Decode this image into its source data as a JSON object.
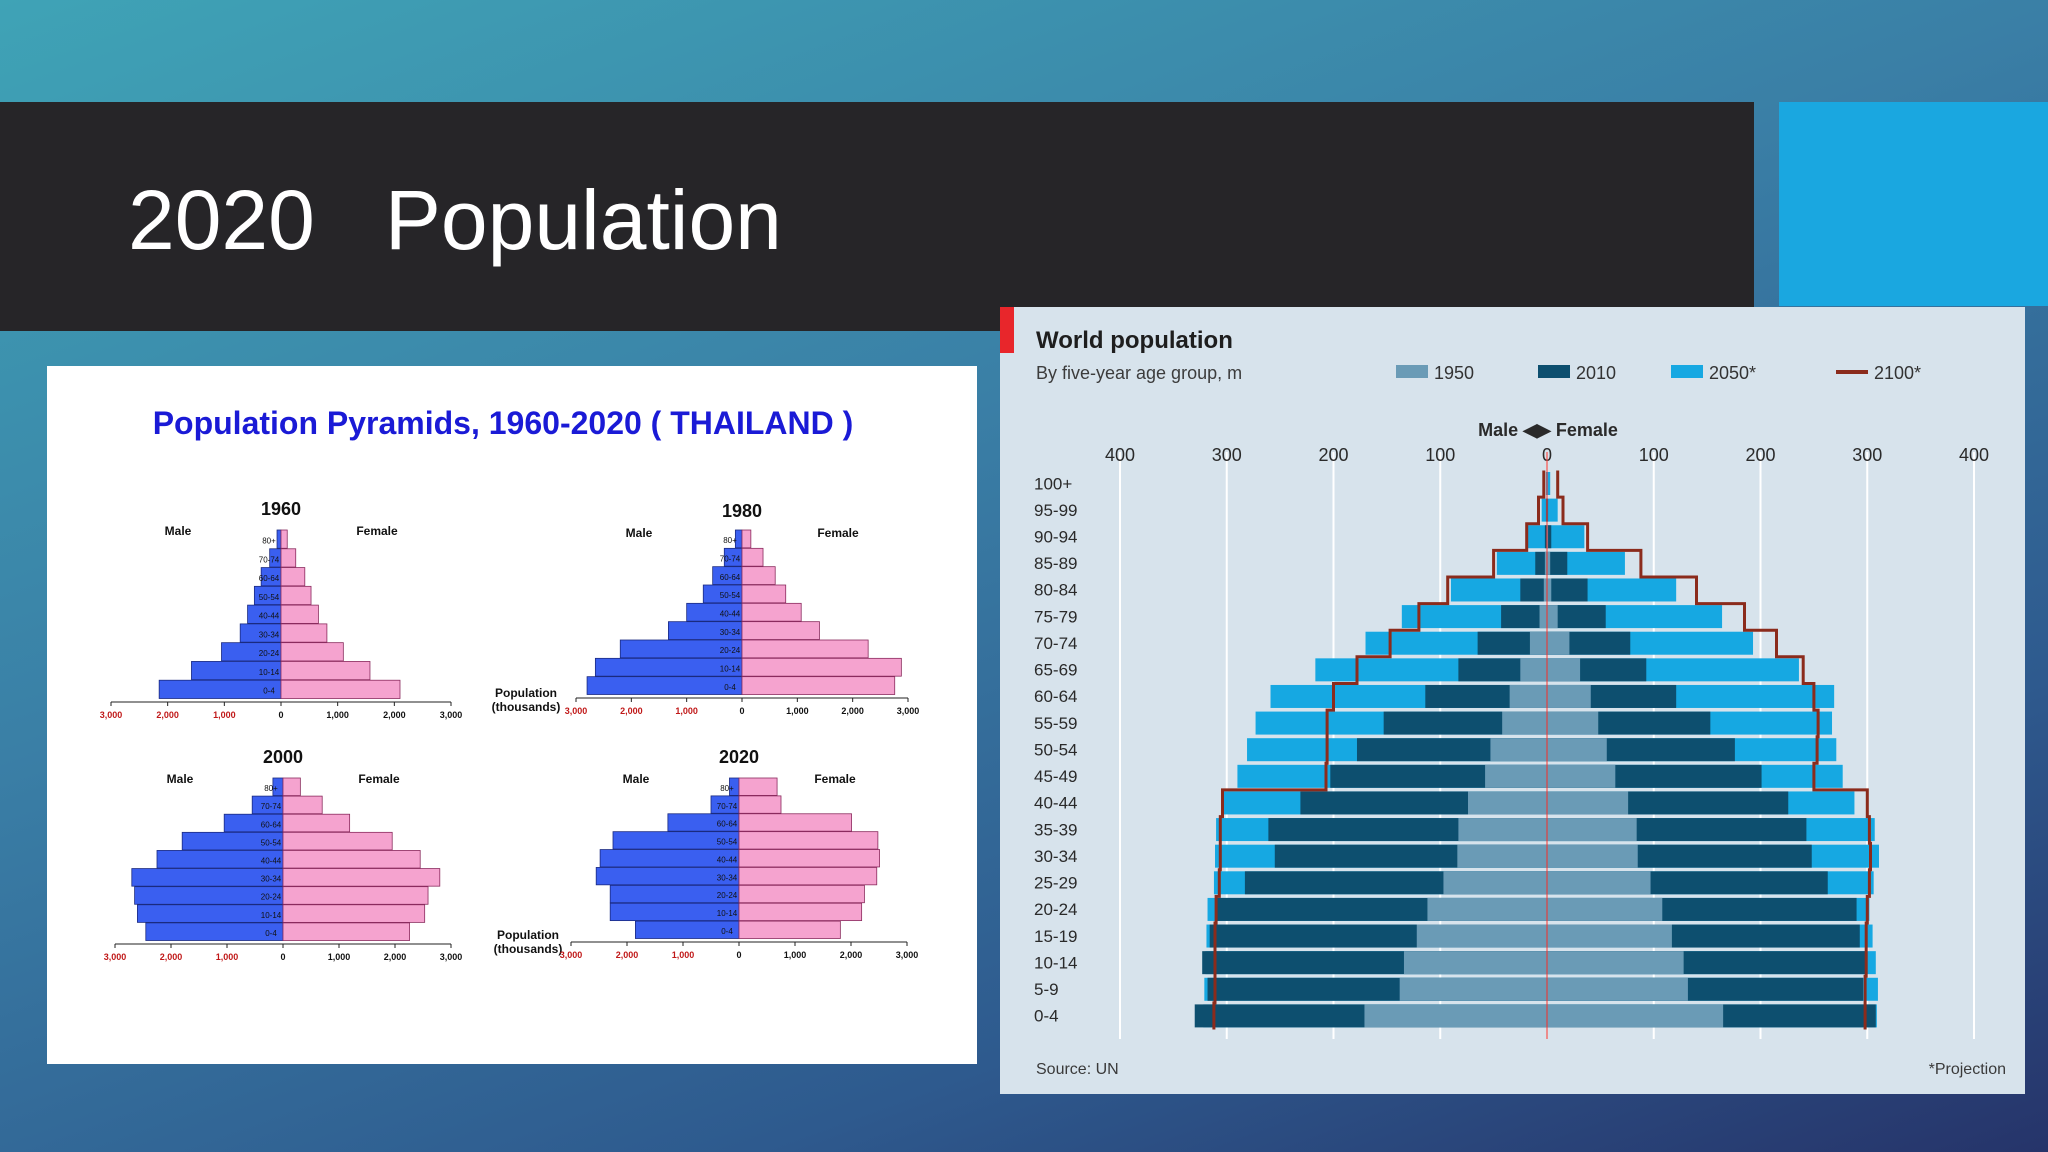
{
  "slide": {
    "title": "2020   Population"
  },
  "colors": {
    "male": "#3a5ff0",
    "female": "#f5a3cf",
    "c1950": "#6a9bb6",
    "c2010": "#0d4f6f",
    "c2050": "#16a8e2",
    "c2100": "#8b2b1c"
  },
  "chart_data": [
    {
      "type": "bar",
      "title": "Population Pyramids, 1960-2020 ( THAILAND )",
      "xlabel": "Population (thousands)",
      "side_labels": [
        "Male",
        "Female"
      ],
      "xlim": [
        -3000,
        3000
      ],
      "x_ticks": [
        "3,000",
        "2,000",
        "1,000",
        "0",
        "1,000",
        "2,000",
        "3,000"
      ],
      "categories": [
        "0-4",
        "10-14",
        "20-24",
        "30-34",
        "40-44",
        "50-54",
        "60-64",
        "70-74",
        "80+"
      ],
      "panels": [
        {
          "year": "1960",
          "male": [
            2150,
            1580,
            1050,
            720,
            590,
            470,
            350,
            200,
            70
          ],
          "female": [
            2100,
            1570,
            1100,
            810,
            660,
            530,
            420,
            260,
            110
          ]
        },
        {
          "year": "1980",
          "male": [
            2800,
            2650,
            2200,
            1330,
            1000,
            700,
            530,
            320,
            120
          ],
          "female": [
            2760,
            2880,
            2280,
            1400,
            1070,
            790,
            600,
            380,
            160
          ]
        },
        {
          "year": "2000",
          "male": [
            2450,
            2600,
            2650,
            2700,
            2250,
            1800,
            1050,
            550,
            180
          ],
          "female": [
            2260,
            2530,
            2590,
            2800,
            2450,
            1950,
            1190,
            700,
            310
          ]
        },
        {
          "year": "2020",
          "male": [
            1850,
            2300,
            2300,
            2550,
            2480,
            2250,
            1270,
            500,
            170
          ],
          "female": [
            1810,
            2190,
            2240,
            2460,
            2510,
            2480,
            2010,
            750,
            680
          ]
        }
      ]
    },
    {
      "type": "bar",
      "title": "World population",
      "subtitle": "By five-year age group, m",
      "center_label": "Male ◀▶ Female",
      "x_ticks": [
        "400",
        "300",
        "200",
        "100",
        "0",
        "100",
        "200",
        "300",
        "400"
      ],
      "xlim": [
        -400,
        400
      ],
      "categories": [
        "100+",
        "95-99",
        "90-94",
        "85-89",
        "80-84",
        "75-79",
        "70-74",
        "65-69",
        "60-64",
        "55-59",
        "50-54",
        "45-49",
        "40-44",
        "35-39",
        "30-34",
        "25-29",
        "20-24",
        "15-19",
        "10-14",
        "5-9",
        "0-4"
      ],
      "series": [
        {
          "name": "1950",
          "male": [
            0,
            0,
            0,
            2,
            3,
            7,
            16,
            25,
            35,
            42,
            53,
            58,
            74,
            83,
            84,
            97,
            112,
            122,
            134,
            138,
            171
          ],
          "female": [
            0,
            0,
            1,
            3,
            4,
            10,
            21,
            31,
            41,
            48,
            56,
            64,
            76,
            84,
            85,
            97,
            108,
            117,
            128,
            132,
            165
          ]
        },
        {
          "name": "2010",
          "male": [
            0,
            1,
            2,
            11,
            25,
            43,
            65,
            83,
            114,
            153,
            178,
            203,
            231,
            261,
            255,
            283,
            310,
            316,
            323,
            318,
            330
          ],
          "female": [
            0,
            1,
            4,
            19,
            38,
            55,
            78,
            93,
            121,
            153,
            176,
            201,
            226,
            243,
            248,
            263,
            290,
            293,
            299,
            296,
            308
          ]
        },
        {
          "name": "2050*",
          "male": [
            1,
            5,
            18,
            47,
            90,
            136,
            170,
            217,
            259,
            273,
            281,
            290,
            303,
            310,
            311,
            312,
            318,
            319,
            320,
            321,
            322
          ],
          "female": [
            3,
            10,
            35,
            73,
            121,
            164,
            193,
            236,
            269,
            267,
            271,
            277,
            288,
            307,
            311,
            306,
            302,
            305,
            308,
            310,
            309
          ]
        },
        {
          "name": "2100*",
          "male": [
            3,
            8,
            19,
            50,
            93,
            120,
            147,
            178,
            200,
            206,
            206,
            207,
            304,
            306,
            306,
            307,
            310,
            311,
            311,
            311,
            312
          ],
          "female": [
            10,
            15,
            38,
            88,
            140,
            185,
            215,
            240,
            250,
            254,
            253,
            250,
            300,
            302,
            303,
            302,
            300,
            299,
            299,
            298,
            298
          ]
        }
      ],
      "source": "Source: UN",
      "note": "*Projection"
    }
  ]
}
